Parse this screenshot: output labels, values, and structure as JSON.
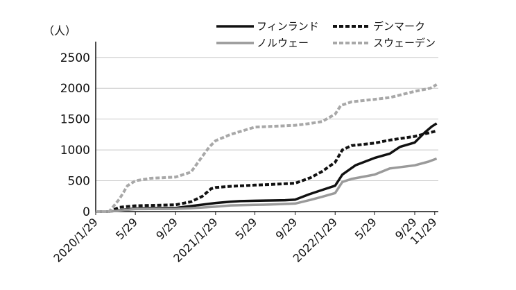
{
  "chart_data": {
    "type": "line",
    "unit_label": "（人）",
    "xlabel": "",
    "ylabel": "",
    "ylim": [
      0,
      2700
    ],
    "yticks": [
      0,
      500,
      1000,
      1500,
      2000,
      2500
    ],
    "xlim": [
      "2020-01-29",
      "2022-12-10"
    ],
    "xticks": [
      {
        "date": "2020-01-29",
        "label": "2020/1/29"
      },
      {
        "date": "2020-05-29",
        "label": "5/29"
      },
      {
        "date": "2020-09-29",
        "label": "9/29"
      },
      {
        "date": "2021-01-29",
        "label": "2021/1/29"
      },
      {
        "date": "2021-05-29",
        "label": "5/29"
      },
      {
        "date": "2021-09-29",
        "label": "9/29"
      },
      {
        "date": "2022-01-29",
        "label": "2022/1/29"
      },
      {
        "date": "2022-05-29",
        "label": "5/29"
      },
      {
        "date": "2022-09-29",
        "label": "9/29"
      },
      {
        "date": "2022-11-29",
        "label": "11/29"
      }
    ],
    "grid": "horizontal",
    "legend_position": "top-right",
    "series": [
      {
        "name": "フィンランド",
        "color": "#111111",
        "style": "solid",
        "points": [
          [
            "2020-01-29",
            0
          ],
          [
            "2020-03-10",
            0
          ],
          [
            "2020-04-15",
            25
          ],
          [
            "2020-05-29",
            50
          ],
          [
            "2020-07-15",
            55
          ],
          [
            "2020-09-29",
            60
          ],
          [
            "2020-11-15",
            90
          ],
          [
            "2021-01-29",
            140
          ],
          [
            "2021-03-15",
            160
          ],
          [
            "2021-04-15",
            170
          ],
          [
            "2021-05-29",
            175
          ],
          [
            "2021-07-15",
            180
          ],
          [
            "2021-08-29",
            185
          ],
          [
            "2021-09-29",
            195
          ],
          [
            "2021-11-10",
            280
          ],
          [
            "2021-12-20",
            350
          ],
          [
            "2022-01-29",
            420
          ],
          [
            "2022-02-20",
            600
          ],
          [
            "2022-04-01",
            750
          ],
          [
            "2022-05-29",
            870
          ],
          [
            "2022-07-15",
            940
          ],
          [
            "2022-08-15",
            1050
          ],
          [
            "2022-09-29",
            1120
          ],
          [
            "2022-10-29",
            1280
          ],
          [
            "2022-11-20",
            1380
          ],
          [
            "2022-12-05",
            1430
          ]
        ]
      },
      {
        "name": "デンマーク",
        "color": "#111111",
        "style": "dashed",
        "points": [
          [
            "2020-01-29",
            0
          ],
          [
            "2020-03-10",
            0
          ],
          [
            "2020-04-10",
            70
          ],
          [
            "2020-05-29",
            95
          ],
          [
            "2020-07-15",
            100
          ],
          [
            "2020-09-29",
            110
          ],
          [
            "2020-11-15",
            160
          ],
          [
            "2020-12-20",
            250
          ],
          [
            "2021-01-15",
            370
          ],
          [
            "2021-01-29",
            390
          ],
          [
            "2021-03-15",
            410
          ],
          [
            "2021-05-29",
            430
          ],
          [
            "2021-07-15",
            440
          ],
          [
            "2021-09-29",
            460
          ],
          [
            "2021-11-15",
            550
          ],
          [
            "2021-12-20",
            650
          ],
          [
            "2022-01-29",
            800
          ],
          [
            "2022-02-20",
            1000
          ],
          [
            "2022-03-20",
            1070
          ],
          [
            "2022-05-29",
            1110
          ],
          [
            "2022-07-15",
            1160
          ],
          [
            "2022-09-29",
            1220
          ],
          [
            "2022-10-29",
            1260
          ],
          [
            "2022-11-29",
            1300
          ],
          [
            "2022-12-05",
            1310
          ]
        ]
      },
      {
        "name": "ノルウェー",
        "color": "#9a9a9a",
        "style": "solid",
        "points": [
          [
            "2020-01-29",
            0
          ],
          [
            "2020-03-10",
            0
          ],
          [
            "2020-04-15",
            20
          ],
          [
            "2020-05-29",
            40
          ],
          [
            "2020-09-29",
            45
          ],
          [
            "2020-11-15",
            55
          ],
          [
            "2021-01-29",
            80
          ],
          [
            "2021-03-15",
            100
          ],
          [
            "2021-05-29",
            110
          ],
          [
            "2021-07-15",
            115
          ],
          [
            "2021-09-29",
            130
          ],
          [
            "2021-11-15",
            190
          ],
          [
            "2021-12-20",
            240
          ],
          [
            "2022-01-29",
            300
          ],
          [
            "2022-02-20",
            480
          ],
          [
            "2022-03-20",
            530
          ],
          [
            "2022-05-29",
            600
          ],
          [
            "2022-07-15",
            700
          ],
          [
            "2022-09-29",
            750
          ],
          [
            "2022-11-10",
            810
          ],
          [
            "2022-12-05",
            860
          ]
        ]
      },
      {
        "name": "スウェーデン",
        "color": "#a8a8a8",
        "style": "dashed",
        "points": [
          [
            "2020-01-29",
            0
          ],
          [
            "2020-03-10",
            0
          ],
          [
            "2020-04-10",
            200
          ],
          [
            "2020-05-05",
            420
          ],
          [
            "2020-05-29",
            500
          ],
          [
            "2020-07-15",
            540
          ],
          [
            "2020-09-29",
            560
          ],
          [
            "2020-11-15",
            640
          ],
          [
            "2020-12-20",
            900
          ],
          [
            "2021-01-10",
            1050
          ],
          [
            "2021-01-29",
            1150
          ],
          [
            "2021-03-15",
            1250
          ],
          [
            "2021-05-29",
            1370
          ],
          [
            "2021-07-15",
            1380
          ],
          [
            "2021-09-29",
            1400
          ],
          [
            "2021-11-15",
            1430
          ],
          [
            "2021-12-20",
            1460
          ],
          [
            "2022-01-29",
            1580
          ],
          [
            "2022-02-15",
            1720
          ],
          [
            "2022-03-20",
            1780
          ],
          [
            "2022-05-29",
            1820
          ],
          [
            "2022-07-15",
            1850
          ],
          [
            "2022-09-29",
            1950
          ],
          [
            "2022-11-15",
            2000
          ],
          [
            "2022-12-05",
            2060
          ]
        ]
      }
    ]
  }
}
